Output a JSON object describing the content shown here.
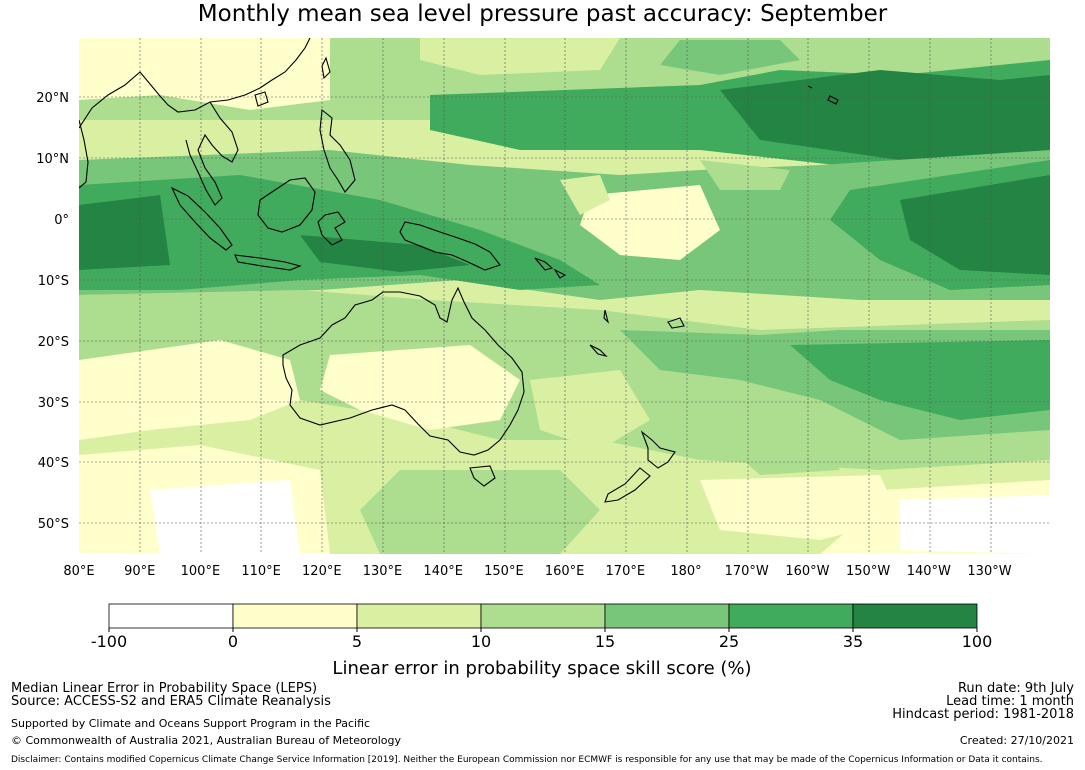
{
  "map": {
    "title": "Monthly mean sea level pressure past accuracy: September",
    "lat_labels": [
      "20°N",
      "10°N",
      "0°",
      "10°S",
      "20°S",
      "30°S",
      "40°S",
      "50°S"
    ],
    "lon_labels": [
      "80°E",
      "90°E",
      "100°E",
      "110°E",
      "120°E",
      "130°E",
      "140°E",
      "150°E",
      "160°E",
      "170°E",
      "180°",
      "170°W",
      "160°W",
      "150°W",
      "140°W",
      "130°W"
    ]
  },
  "colorbar": {
    "title": "Linear error in probability space skill score (%)",
    "boundaries": [
      "-100",
      "0",
      "5",
      "10",
      "15",
      "25",
      "35",
      "100"
    ],
    "colors": [
      "#ffffff",
      "#ffffcc",
      "#d9f0a3",
      "#addd8e",
      "#78c679",
      "#41ab5d",
      "#238443"
    ]
  },
  "footer": {
    "left_line1": "Median Linear Error in Probability Space (LEPS)",
    "left_line2": "Source: ACCESS-S2 and ERA5 Climate Reanalysis",
    "left_line3": "Supported by Climate and Oceans Support Program in the Pacific",
    "left_line4": "© Commonwealth of Australia 2021, Australian Bureau of Meteorology",
    "right_line1": "Run date: 9th July",
    "right_line2": "Lead time: 1 month",
    "right_line3": "Hindcast period: 1981-2018",
    "right_line4": "Created: 27/10/2021",
    "disclaimer": "Disclaimer: Contains modified Copernicus Climate Change Service Information [2019]. Neither the European Commission nor ECMWF is responsible for any use that may be made of the Copernicus Information or Data it contains."
  }
}
